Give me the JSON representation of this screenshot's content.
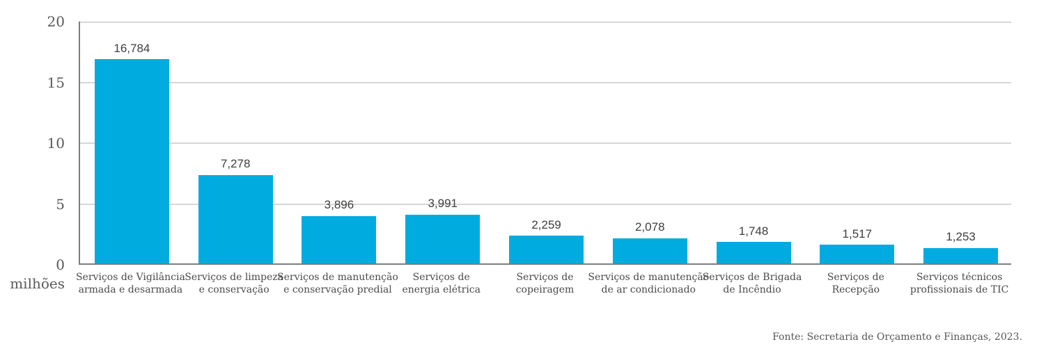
{
  "chart_data": {
    "type": "bar",
    "title": "",
    "unit_label": "milhões",
    "ylim": [
      0,
      20
    ],
    "yticks": [
      0,
      5,
      10,
      15,
      20
    ],
    "grid": true,
    "legend_position": "none",
    "bar_color": "#00ACDF",
    "axis_color": "#7d7d7d",
    "gridline_color": "#d6d6d6",
    "categories": [
      "Serviços de Vigilância armada e desarmada",
      "Serviços de limpeza e conservação",
      "Serviços de manutenção e conservação predial",
      "Serviços de energia elétrica",
      "Serviços de copeiragem",
      "Serviços de manutenção de ar condicionado",
      "Serviços de Brigada de Incêndio",
      "Serviços de Recepção",
      "Serviços técnicos profissionais de TIC"
    ],
    "category_lines": [
      [
        "Serviços de Vigilância",
        "armada e desarmada"
      ],
      [
        "Serviços de limpeza",
        "e conservação"
      ],
      [
        "Serviços de manutenção",
        "e conservação predial"
      ],
      [
        "Serviços de",
        "energia elétrica"
      ],
      [
        "Serviços de",
        "copeiragem"
      ],
      [
        "Serviços de manutenção",
        "de ar condicionado"
      ],
      [
        "Serviços de Brigada",
        "de Incêndio"
      ],
      [
        "Serviços de",
        "Recepção"
      ],
      [
        "Serviços técnicos",
        "profissionais de TIC"
      ]
    ],
    "values": [
      16.784,
      7.278,
      3.896,
      3.991,
      2.259,
      2.078,
      1.748,
      1.517,
      1.253
    ],
    "value_labels": [
      "16,784",
      "7,278",
      "3,896",
      "3,991",
      "2,259",
      "2,078",
      "1,748",
      "1,517",
      "1,253"
    ],
    "source_note": "Fonte: Secretaria de Orçamento e Finanças, 2023."
  }
}
